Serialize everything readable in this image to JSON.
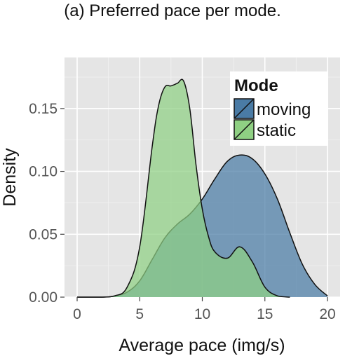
{
  "caption": "(a) Preferred pace per mode.",
  "chart_data": {
    "type": "area",
    "xlabel": "Average pace (img/s)",
    "ylabel": "Density",
    "xlim": [
      0,
      20
    ],
    "ylim": [
      0,
      0.175
    ],
    "x_ticks": [
      0,
      5,
      10,
      15,
      20
    ],
    "y_ticks": [
      0.0,
      0.05,
      0.1,
      0.15
    ],
    "x_tick_labels": [
      "0",
      "5",
      "10",
      "15",
      "20"
    ],
    "y_tick_labels": [
      "0.00",
      "0.05",
      "0.10",
      "0.15"
    ],
    "grid": true,
    "legend": {
      "title": "Mode",
      "placement": "top-right",
      "entries": [
        "moving",
        "static"
      ]
    },
    "series": [
      {
        "name": "moving",
        "color": "#4a7ba5",
        "x": [
          0,
          2,
          3,
          4,
          5,
          6,
          7,
          8,
          9,
          10,
          11,
          12,
          13,
          14,
          15,
          16,
          17,
          18,
          19,
          20
        ],
        "y": [
          0.0,
          0.0,
          0.001,
          0.004,
          0.013,
          0.03,
          0.047,
          0.058,
          0.066,
          0.078,
          0.094,
          0.108,
          0.113,
          0.11,
          0.098,
          0.078,
          0.051,
          0.026,
          0.01,
          0.001
        ]
      },
      {
        "name": "static",
        "color": "#8fd083",
        "x": [
          0,
          2,
          3,
          4,
          5,
          6,
          6.5,
          7,
          7.5,
          8,
          8.5,
          9,
          9.5,
          10,
          10.5,
          11,
          12,
          13,
          14,
          15,
          16,
          17
        ],
        "y": [
          0.0,
          0.0,
          0.001,
          0.008,
          0.04,
          0.12,
          0.152,
          0.167,
          0.168,
          0.17,
          0.172,
          0.15,
          0.105,
          0.07,
          0.048,
          0.036,
          0.031,
          0.04,
          0.028,
          0.008,
          0.001,
          0.0
        ]
      }
    ]
  }
}
